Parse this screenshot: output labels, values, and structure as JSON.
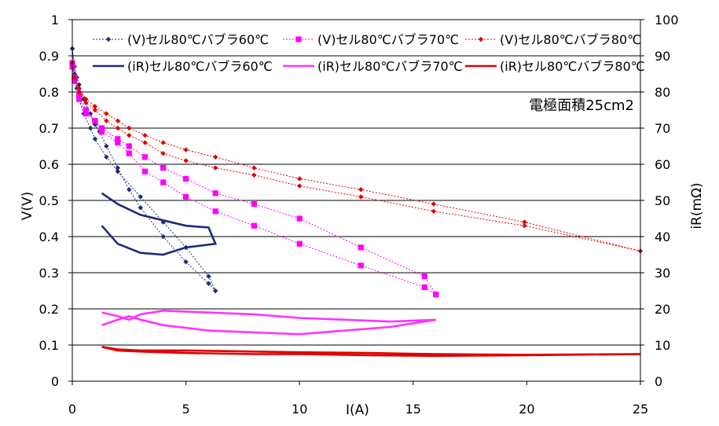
{
  "chart_data": {
    "type": "line",
    "title": "",
    "annotation": "電極面積25cm2",
    "xlabel": "I(A)",
    "ylabel": "V(V)",
    "y2label": "iR(mΩ)",
    "xlim": [
      0,
      25
    ],
    "ylim": [
      0,
      1
    ],
    "y2lim": [
      0,
      100
    ],
    "xticks": [
      "0",
      "5",
      "10",
      "15",
      "20",
      "25"
    ],
    "yticks": [
      "0",
      "0.1",
      "0.2",
      "0.3",
      "0.4",
      "0.5",
      "0.6",
      "0.7",
      "0.8",
      "0.9",
      "1"
    ],
    "y2ticks": [
      "0",
      "10",
      "20",
      "30",
      "40",
      "50",
      "60",
      "70",
      "80",
      "90",
      "100"
    ],
    "grid": "horizontal",
    "legend_position": "top",
    "series": [
      {
        "name": "(V)セル80℃バブラ60℃",
        "axis": "left",
        "color": "#1F2A7A",
        "marker": "diamond",
        "line": "dashed",
        "x": [
          0,
          0.1,
          0.2,
          0.3,
          0.5,
          0.8,
          1.0,
          1.2,
          1.5,
          2.0,
          2.5,
          3.0,
          4.0,
          5.0,
          6.0,
          6.3,
          6.0,
          5.0,
          4.0,
          3.0,
          2.0,
          1.5,
          1.0,
          0.8,
          0.5,
          0.3,
          0.2,
          0.1,
          0
        ],
        "y": [
          0.92,
          0.87,
          0.84,
          0.82,
          0.78,
          0.74,
          0.71,
          0.69,
          0.65,
          0.59,
          0.53,
          0.48,
          0.4,
          0.33,
          0.27,
          0.25,
          0.29,
          0.37,
          0.44,
          0.51,
          0.58,
          0.62,
          0.67,
          0.7,
          0.74,
          0.78,
          0.81,
          0.85,
          0.92
        ]
      },
      {
        "name": "(V)セル80℃バブラ70℃",
        "axis": "left",
        "color": "#FF00FF",
        "marker": "square",
        "line": "dashed",
        "x": [
          0,
          0.1,
          0.3,
          0.6,
          1.0,
          1.3,
          2.0,
          2.5,
          3.2,
          4.0,
          5.0,
          6.3,
          8.0,
          10.0,
          12.7,
          15.5,
          16.0,
          15.5,
          12.7,
          10.0,
          8.0,
          6.3,
          5.0,
          4.0,
          3.2,
          2.5,
          2.0,
          1.3,
          1.0,
          0.6,
          0.3,
          0.1,
          0
        ],
        "y": [
          0.88,
          0.84,
          0.78,
          0.74,
          0.72,
          0.69,
          0.66,
          0.63,
          0.58,
          0.55,
          0.51,
          0.47,
          0.43,
          0.38,
          0.32,
          0.26,
          0.24,
          0.29,
          0.37,
          0.45,
          0.49,
          0.52,
          0.56,
          0.59,
          0.62,
          0.65,
          0.67,
          0.7,
          0.72,
          0.75,
          0.79,
          0.83,
          0.87
        ]
      },
      {
        "name": "(V)セル80℃バブラ80℃",
        "axis": "left",
        "color": "#E00000",
        "marker": "diamond",
        "line": "dashed",
        "x": [
          0,
          0.1,
          0.3,
          0.6,
          1.0,
          1.5,
          2.0,
          2.5,
          3.2,
          4.0,
          5.0,
          6.3,
          8.0,
          10.0,
          12.7,
          15.9,
          19.9,
          25.0,
          19.9,
          15.9,
          12.7,
          10.0,
          8.0,
          6.3,
          5.0,
          4.0,
          3.2,
          2.5,
          2.0,
          1.5,
          1.0,
          0.6,
          0.3,
          0.1,
          0
        ],
        "y": [
          0.88,
          0.84,
          0.8,
          0.77,
          0.75,
          0.72,
          0.7,
          0.68,
          0.66,
          0.63,
          0.61,
          0.59,
          0.57,
          0.54,
          0.51,
          0.47,
          0.43,
          0.36,
          0.44,
          0.49,
          0.53,
          0.56,
          0.59,
          0.62,
          0.64,
          0.66,
          0.68,
          0.7,
          0.72,
          0.74,
          0.76,
          0.78,
          0.81,
          0.84,
          0.88
        ]
      },
      {
        "name": "(iR)セル80℃バブラ60℃",
        "axis": "right",
        "color": "#1F2A7A",
        "marker": "none",
        "line": "solid",
        "x": [
          1.3,
          2.0,
          3.0,
          4.0,
          5.0,
          6.0,
          6.3,
          5.0,
          4.0,
          3.0,
          2.0,
          1.3
        ],
        "y": [
          52,
          49,
          46,
          44.5,
          43,
          42.5,
          38,
          37,
          35,
          35.5,
          38,
          43
        ]
      },
      {
        "name": "(iR)セル80℃バブラ70℃",
        "axis": "right",
        "color": "#FF33FF",
        "marker": "none",
        "line": "solid",
        "x": [
          1.3,
          2.0,
          2.5,
          3.0,
          4.0,
          6.0,
          8.0,
          10.0,
          12.0,
          14.0,
          16.0,
          14.0,
          12.0,
          10.0,
          8.0,
          6.0,
          4.0,
          3.0,
          2.5,
          2.0,
          1.3
        ],
        "y": [
          19,
          18,
          17,
          18.5,
          19.5,
          19,
          18.5,
          17.5,
          17,
          16.5,
          17,
          15,
          14,
          13,
          13.5,
          14,
          15.5,
          17,
          18,
          17,
          15.5
        ]
      },
      {
        "name": "(iR)セル80℃バブラ80℃",
        "axis": "right",
        "color": "#E00000",
        "marker": "none",
        "line": "solid",
        "x": [
          1.3,
          2.0,
          3.0,
          5.0,
          8.0,
          10.0,
          13.0,
          16.0,
          20.0,
          25.0,
          20.0,
          16.0,
          13.0,
          10.0,
          8.0,
          5.0,
          3.0,
          2.0,
          1.3
        ],
        "y": [
          9.5,
          8.8,
          8.5,
          8.5,
          8.2,
          8.0,
          7.8,
          7.5,
          7.3,
          7.5,
          7.2,
          7.0,
          7.2,
          7.5,
          7.5,
          7.8,
          8.2,
          8.5,
          9.5
        ]
      }
    ]
  }
}
